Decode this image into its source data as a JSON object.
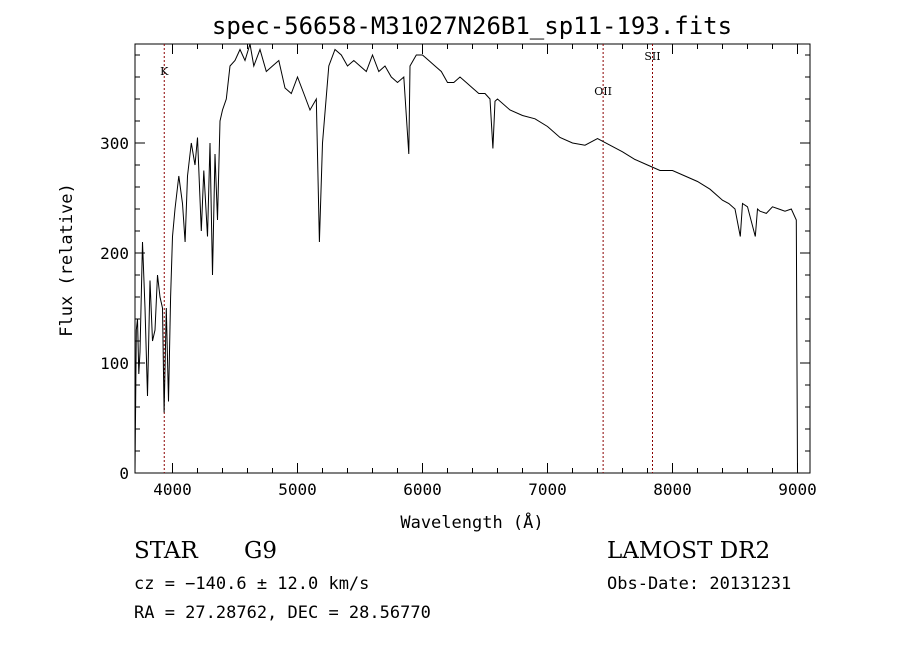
{
  "chart_data": {
    "type": "line",
    "title": "spec-56658-M31027N26B1_sp11-193.fits",
    "xlabel": "Wavelength (Å)",
    "ylabel": "Flux (relative)",
    "xlim": [
      3700,
      9100
    ],
    "ylim": [
      0,
      390
    ],
    "x_ticks": [
      4000,
      5000,
      6000,
      7000,
      8000,
      9000
    ],
    "y_ticks": [
      0,
      100,
      200,
      300
    ],
    "grid": false,
    "line_color": "#000000",
    "marker_color": "#8b0000",
    "lines": [
      {
        "label": "K",
        "x": 3934
      },
      {
        "label": "OII",
        "x": 7445
      },
      {
        "label": "SII",
        "x": 7840
      }
    ],
    "series": [
      {
        "x": [
          3700,
          3710,
          3720,
          3730,
          3740,
          3760,
          3780,
          3800,
          3820,
          3840,
          3860,
          3880,
          3900,
          3920,
          3933,
          3950,
          3968,
          3985,
          4000,
          4020,
          4050,
          4080,
          4101,
          4120,
          4150,
          4180,
          4200,
          4230,
          4250,
          4280,
          4300,
          4320,
          4340,
          4360,
          4380,
          4400,
          4430,
          4460,
          4500,
          4540,
          4580,
          4620,
          4650,
          4700,
          4750,
          4800,
          4850,
          4900,
          4950,
          5000,
          5050,
          5100,
          5150,
          5175,
          5200,
          5250,
          5300,
          5350,
          5400,
          5450,
          5500,
          5550,
          5600,
          5650,
          5700,
          5750,
          5800,
          5850,
          5890,
          5900,
          5950,
          6000,
          6050,
          6100,
          6150,
          6200,
          6250,
          6300,
          6350,
          6400,
          6450,
          6500,
          6540,
          6563,
          6580,
          6600,
          6700,
          6800,
          6900,
          7000,
          7100,
          7200,
          7300,
          7400,
          7500,
          7600,
          7700,
          7800,
          7900,
          8000,
          8100,
          8200,
          8300,
          8400,
          8450,
          8500,
          8542,
          8560,
          8600,
          8662,
          8680,
          8700,
          8750,
          8800,
          8850,
          8900,
          8950,
          8990,
          9000
        ],
        "y": [
          0,
          130,
          140,
          90,
          110,
          210,
          150,
          70,
          175,
          120,
          130,
          180,
          160,
          150,
          55,
          150,
          65,
          160,
          215,
          240,
          270,
          245,
          210,
          270,
          300,
          280,
          305,
          220,
          275,
          215,
          300,
          180,
          290,
          230,
          320,
          330,
          340,
          370,
          375,
          385,
          375,
          390,
          370,
          385,
          365,
          370,
          375,
          350,
          345,
          360,
          345,
          330,
          340,
          210,
          300,
          370,
          385,
          380,
          370,
          375,
          370,
          365,
          380,
          365,
          370,
          360,
          355,
          360,
          290,
          370,
          380,
          380,
          375,
          370,
          365,
          355,
          355,
          360,
          355,
          350,
          345,
          345,
          340,
          295,
          338,
          340,
          330,
          325,
          322,
          315,
          305,
          300,
          298,
          304,
          298,
          292,
          285,
          280,
          275,
          275,
          270,
          265,
          258,
          248,
          245,
          240,
          215,
          245,
          242,
          215,
          240,
          238,
          236,
          242,
          240,
          238,
          240,
          230,
          0
        ]
      }
    ]
  },
  "info": {
    "class": "STAR",
    "subclass": "G9",
    "survey": "LAMOST DR2",
    "cz": "cz = −140.6 ± 12.0 km/s",
    "obs_date": "Obs-Date: 20131231",
    "coords": "RA =  27.28762, DEC =  28.56770"
  }
}
